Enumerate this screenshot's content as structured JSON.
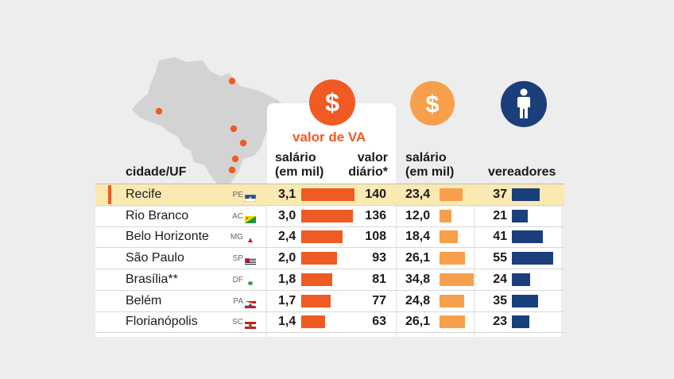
{
  "colors": {
    "va_bar": "#f05a23",
    "va_icon": "#f05a23",
    "salario_bar": "#f7a04b",
    "salario_icon": "#f7a04b",
    "vereadores_bar": "#1b3f7a",
    "vereadores_icon": "#1b3f7a",
    "highlight_row": "#faeab2",
    "highlight_marker": "#f05a23",
    "map_land": "#d3d3d3",
    "map_dot": "#f05a23"
  },
  "icons": {
    "va": "dollar-sign-icon",
    "salario": "dollar-sign-icon",
    "vereadores": "person-icon"
  },
  "labels": {
    "valor_va": "valor de VA",
    "cidade_uf": "cidade/UF",
    "salario_va_l1": "salário",
    "salario_va_l2": "(em mil)",
    "valor_l1": "valor",
    "valor_l2": "diário*",
    "salario_l1": "salário",
    "salario_l2": "(em mil)",
    "vereadores": "vereadores"
  },
  "chart_data": {
    "type": "table",
    "columns": [
      "cidade",
      "UF",
      "salário (em mil)",
      "valor diário*",
      "salário (em mil)",
      "vereadores"
    ],
    "highlighted_row": "Recife",
    "rows": [
      {
        "cidade": "Recife",
        "uf": "PE",
        "va_salario": "3,1",
        "va_salario_value": 3.1,
        "valor_diario": "140",
        "valor_diario_value": 140,
        "salario": "23,4",
        "salario_value": 23.4,
        "vereadores": "37",
        "vereadores_value": 37
      },
      {
        "cidade": "Rio Branco",
        "uf": "AC",
        "va_salario": "3,0",
        "va_salario_value": 3.0,
        "valor_diario": "136",
        "valor_diario_value": 136,
        "salario": "12,0",
        "salario_value": 12.0,
        "vereadores": "21",
        "vereadores_value": 21
      },
      {
        "cidade": "Belo Horizonte",
        "uf": "MG",
        "va_salario": "2,4",
        "va_salario_value": 2.4,
        "valor_diario": "108",
        "valor_diario_value": 108,
        "salario": "18,4",
        "salario_value": 18.4,
        "vereadores": "41",
        "vereadores_value": 41
      },
      {
        "cidade": "São Paulo",
        "uf": "SP",
        "va_salario": "2,0",
        "va_salario_value": 2.0,
        "valor_diario": "93",
        "valor_diario_value": 93,
        "salario": "26,1",
        "salario_value": 26.1,
        "vereadores": "55",
        "vereadores_value": 55
      },
      {
        "cidade": "Brasília**",
        "uf": "DF",
        "va_salario": "1,8",
        "va_salario_value": 1.8,
        "valor_diario": "81",
        "valor_diario_value": 81,
        "salario": "34,8",
        "salario_value": 34.8,
        "vereadores": "24",
        "vereadores_value": 24
      },
      {
        "cidade": "Belém",
        "uf": "PA",
        "va_salario": "1,7",
        "va_salario_value": 1.7,
        "valor_diario": "77",
        "valor_diario_value": 77,
        "salario": "24,8",
        "salario_value": 24.8,
        "vereadores": "35",
        "vereadores_value": 35
      },
      {
        "cidade": "Florianópolis",
        "uf": "SC",
        "va_salario": "1,4",
        "va_salario_value": 1.4,
        "valor_diario": "63",
        "valor_diario_value": 63,
        "salario": "26,1",
        "salario_value": 26.1,
        "vereadores": "23",
        "vereadores_value": 23
      }
    ],
    "bar_scales": {
      "valor_diario_max": 140,
      "salario_max": 34.8,
      "vereadores_max": 55
    }
  }
}
